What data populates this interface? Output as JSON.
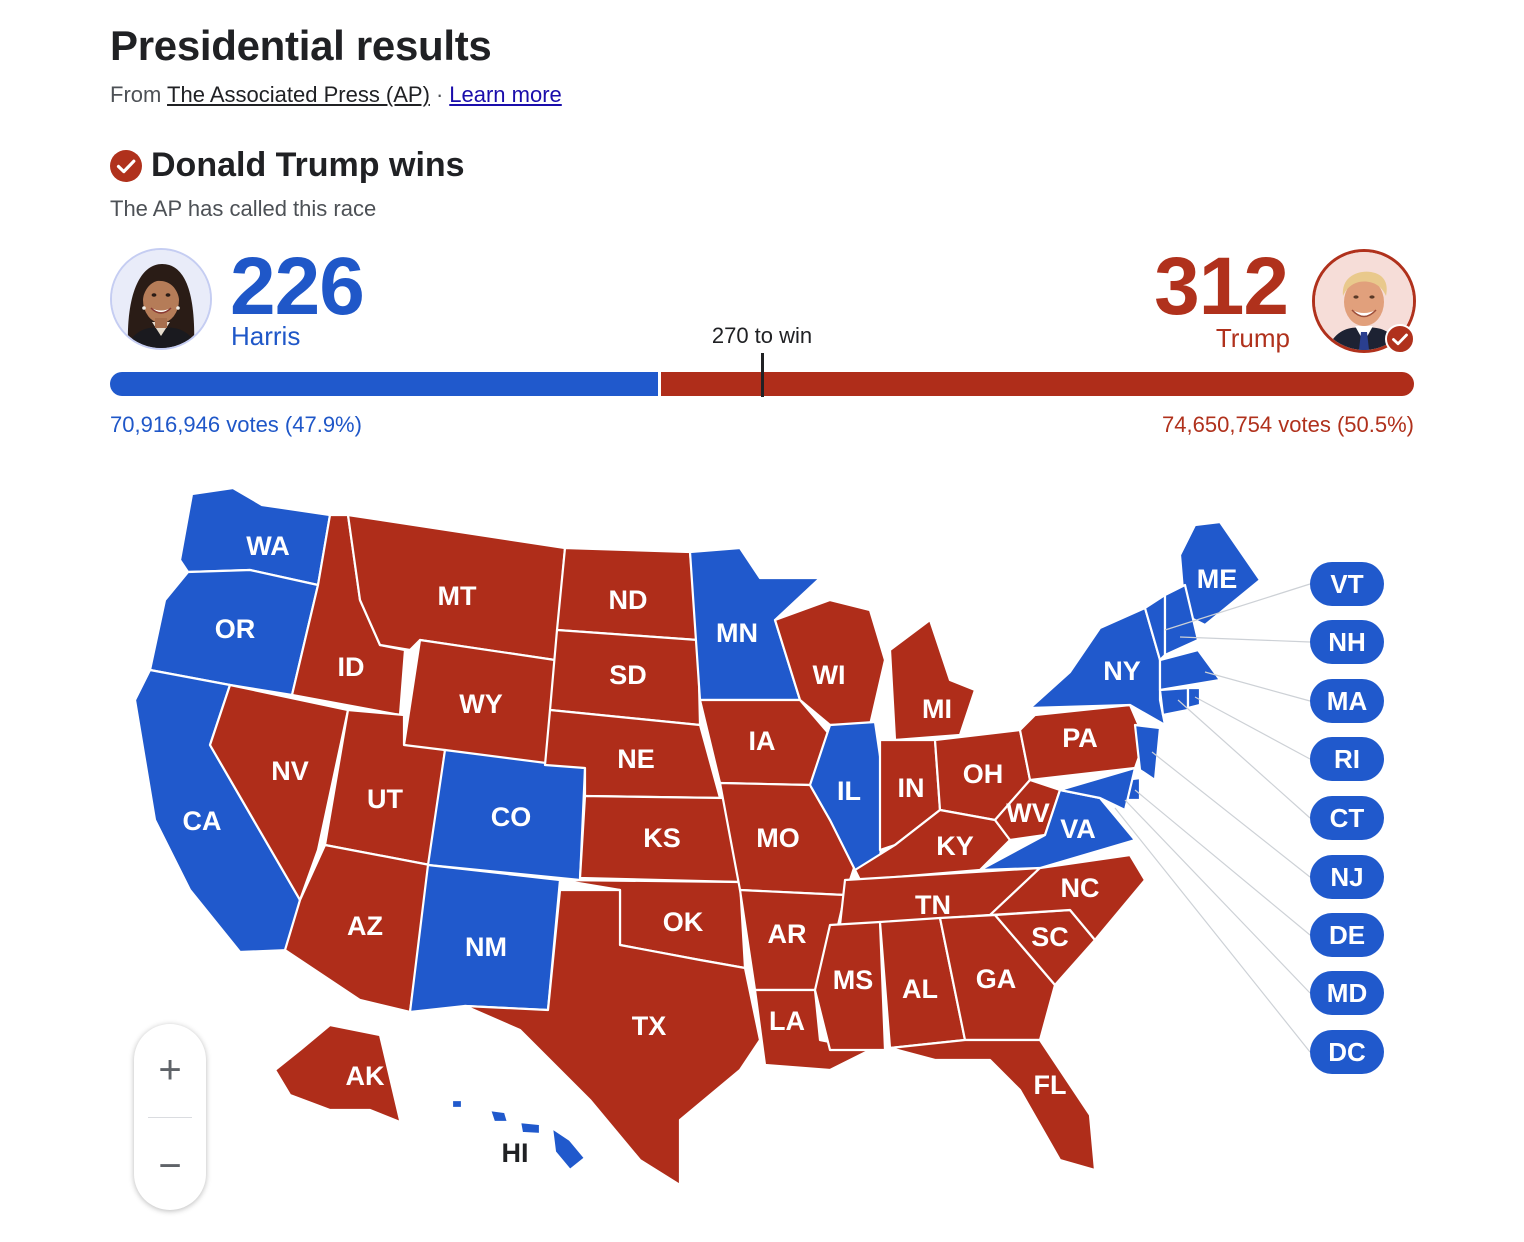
{
  "header": {
    "title": "Presidential results",
    "from_label": "From",
    "source": "The Associated Press (AP)",
    "separator": "·",
    "learn_more": "Learn more"
  },
  "result": {
    "winner_text": "Donald Trump wins",
    "called_text": "The AP has called this race"
  },
  "candidates": {
    "harris": {
      "name": "Harris",
      "electoral_votes": "226",
      "votes_text": "70,916,946 votes (47.9%)",
      "color": "#2059cc"
    },
    "trump": {
      "name": "Trump",
      "electoral_votes": "312",
      "votes_text": "74,650,754 votes (50.5%)",
      "color": "#af2d1a"
    }
  },
  "threshold": {
    "label": "270 to win",
    "value": 270,
    "total": 538
  },
  "colors": {
    "dem": "#2059cc",
    "rep": "#af2d1a",
    "winner_check": "#b0311c"
  },
  "map": {
    "states": [
      {
        "abbr": "WA",
        "party": "dem"
      },
      {
        "abbr": "OR",
        "party": "dem"
      },
      {
        "abbr": "CA",
        "party": "dem"
      },
      {
        "abbr": "ID",
        "party": "rep"
      },
      {
        "abbr": "NV",
        "party": "rep"
      },
      {
        "abbr": "MT",
        "party": "rep"
      },
      {
        "abbr": "WY",
        "party": "rep"
      },
      {
        "abbr": "UT",
        "party": "rep"
      },
      {
        "abbr": "AZ",
        "party": "rep"
      },
      {
        "abbr": "CO",
        "party": "dem"
      },
      {
        "abbr": "NM",
        "party": "dem"
      },
      {
        "abbr": "ND",
        "party": "rep"
      },
      {
        "abbr": "SD",
        "party": "rep"
      },
      {
        "abbr": "NE",
        "party": "rep"
      },
      {
        "abbr": "KS",
        "party": "rep"
      },
      {
        "abbr": "OK",
        "party": "rep"
      },
      {
        "abbr": "TX",
        "party": "rep"
      },
      {
        "abbr": "MN",
        "party": "dem"
      },
      {
        "abbr": "IA",
        "party": "rep"
      },
      {
        "abbr": "MO",
        "party": "rep"
      },
      {
        "abbr": "AR",
        "party": "rep"
      },
      {
        "abbr": "LA",
        "party": "rep"
      },
      {
        "abbr": "WI",
        "party": "rep"
      },
      {
        "abbr": "IL",
        "party": "dem"
      },
      {
        "abbr": "MI",
        "party": "rep"
      },
      {
        "abbr": "IN",
        "party": "rep"
      },
      {
        "abbr": "OH",
        "party": "rep"
      },
      {
        "abbr": "KY",
        "party": "rep"
      },
      {
        "abbr": "TN",
        "party": "rep"
      },
      {
        "abbr": "MS",
        "party": "rep"
      },
      {
        "abbr": "AL",
        "party": "rep"
      },
      {
        "abbr": "GA",
        "party": "rep"
      },
      {
        "abbr": "FL",
        "party": "rep"
      },
      {
        "abbr": "SC",
        "party": "rep"
      },
      {
        "abbr": "NC",
        "party": "rep"
      },
      {
        "abbr": "VA",
        "party": "dem"
      },
      {
        "abbr": "WV",
        "party": "rep"
      },
      {
        "abbr": "PA",
        "party": "rep"
      },
      {
        "abbr": "NY",
        "party": "dem"
      },
      {
        "abbr": "ME",
        "party": "dem"
      },
      {
        "abbr": "AK",
        "party": "rep"
      },
      {
        "abbr": "HI",
        "party": "dem"
      }
    ],
    "small_states": [
      {
        "abbr": "VT",
        "party": "dem"
      },
      {
        "abbr": "NH",
        "party": "dem"
      },
      {
        "abbr": "MA",
        "party": "dem"
      },
      {
        "abbr": "RI",
        "party": "dem"
      },
      {
        "abbr": "CT",
        "party": "dem"
      },
      {
        "abbr": "NJ",
        "party": "dem"
      },
      {
        "abbr": "DE",
        "party": "dem"
      },
      {
        "abbr": "MD",
        "party": "dem"
      },
      {
        "abbr": "DC",
        "party": "dem"
      }
    ]
  },
  "zoom": {
    "in_label": "+",
    "out_label": "−"
  }
}
